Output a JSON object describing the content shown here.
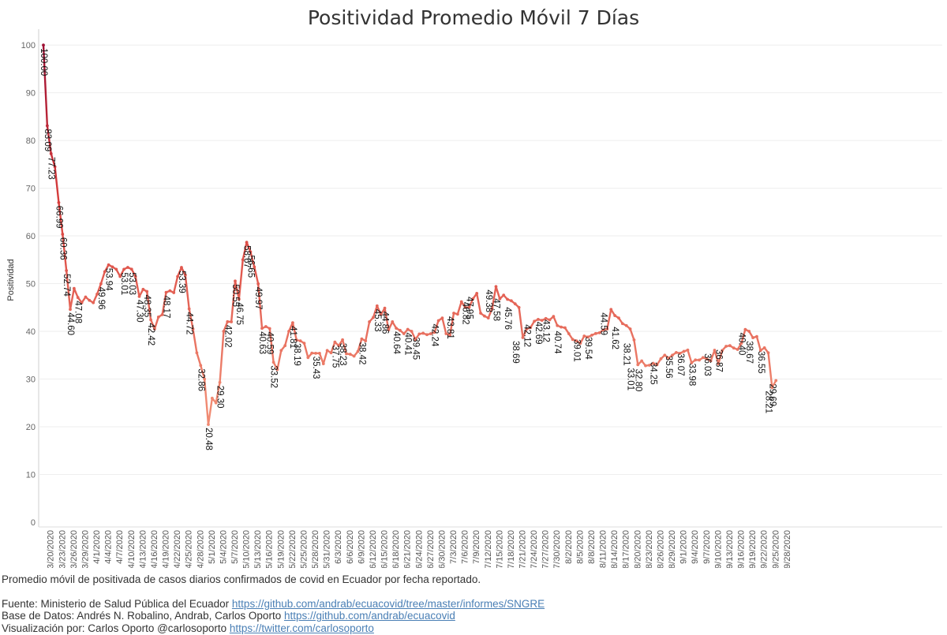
{
  "chart_data": {
    "type": "line",
    "title": "Positividad Promedio Móvil 7 Días",
    "ylabel": "Positividad",
    "xlabel": "",
    "ylim": [
      0,
      102
    ],
    "grid": true,
    "yticks": [
      0,
      10,
      20,
      30,
      40,
      50,
      60,
      70,
      80,
      90,
      100
    ],
    "xticks": [
      "3/20/2020",
      "3/23/2020",
      "3/26/2020",
      "3/29/2020",
      "4/1/2020",
      "4/4/2020",
      "4/7/2020",
      "4/10/2020",
      "4/13/2020",
      "4/16/2020",
      "4/19/2020",
      "4/22/2020",
      "4/25/2020",
      "4/28/2020",
      "5/1/2020",
      "5/4/2020",
      "5/7/2020",
      "5/10/2020",
      "5/13/2020",
      "5/16/2020",
      "5/19/2020",
      "5/22/2020",
      "5/25/2020",
      "5/28/2020",
      "5/31/2020",
      "6/3/2020",
      "6/6/2020",
      "6/9/2020",
      "6/12/2020",
      "6/15/2020",
      "6/18/2020",
      "6/21/2020",
      "6/24/2020",
      "6/27/2020",
      "6/30/2020",
      "7/3/2020",
      "7/6/2020",
      "7/9/2020",
      "7/12/2020",
      "7/15/2020",
      "7/18/2020",
      "7/21/2020",
      "7/24/2020",
      "7/27/2020",
      "7/30/2020",
      "8/2/2020",
      "8/5/2020",
      "8/8/2020",
      "8/11/2020",
      "8/14/2020",
      "8/17/2020",
      "8/20/2020",
      "8/23/2020",
      "8/26/2020",
      "8/29/2020",
      "9/1/2020",
      "9/4/2020",
      "9/7/2020",
      "9/10/2020",
      "9/13/2020",
      "9/16/2020",
      "9/19/2020",
      "9/22/2020",
      "9/25/2020",
      "9/28/2020"
    ],
    "start_date": "3/18/2020",
    "values": [
      100.0,
      83.09,
      77.23,
      74.5,
      66.99,
      60.36,
      52.74,
      44.6,
      49.0,
      47.08,
      46.0,
      47.2,
      46.5,
      46.0,
      47.8,
      49.96,
      52.5,
      53.94,
      53.5,
      53.0,
      51.5,
      53.01,
      53.4,
      53.03,
      51.5,
      47.3,
      48.8,
      48.35,
      42.42,
      40.5,
      43.0,
      43.5,
      48.17,
      48.5,
      48.1,
      51.5,
      53.39,
      51.8,
      44.72,
      40.5,
      35.5,
      32.86,
      30.0,
      20.48,
      26.0,
      25.0,
      29.3,
      40.0,
      42.02,
      42.0,
      50.55,
      46.75,
      55.0,
      58.67,
      56.65,
      53.5,
      49.97,
      40.63,
      41.0,
      40.59,
      33.52,
      32.0,
      36.0,
      37.0,
      40.0,
      41.81,
      38.19,
      38.0,
      37.5,
      34.5,
      35.43,
      35.4,
      35.4,
      33.2,
      36.0,
      35.5,
      37.75,
      37.0,
      38.23,
      35.3,
      35.2,
      34.8,
      35.8,
      38.42,
      38.0,
      42.0,
      42.9,
      45.33,
      43.5,
      44.86,
      40.3,
      42.0,
      40.64,
      40.2,
      39.5,
      40.41,
      40.0,
      38.3,
      39.45,
      39.6,
      39.3,
      39.5,
      39.8,
      42.24,
      42.8,
      39.5,
      39.2,
      43.81,
      43.6,
      46.2,
      45.0,
      45.0,
      46.82,
      47.95,
      43.8,
      43.2,
      42.8,
      44.8,
      49.38,
      46.8,
      47.58,
      46.7,
      46.4,
      45.76,
      45.0,
      38.69,
      40.5,
      40.8,
      42.12,
      42.5,
      42.3,
      42.69,
      42.4,
      43.12,
      41.2,
      40.9,
      40.74,
      39.5,
      38.3,
      38.0,
      37.5,
      39.01,
      38.8,
      39.2,
      39.54,
      39.7,
      40.3,
      40.5,
      44.59,
      43.3,
      42.8,
      41.62,
      41.2,
      40.5,
      38.21,
      33.01,
      33.8,
      32.8,
      32.9,
      33.3,
      33.0,
      34.25,
      35.0,
      34.4,
      35.0,
      35.56,
      35.4,
      35.8,
      36.07,
      33.4,
      34.0,
      33.98,
      34.5,
      34.2,
      33.8,
      36.03,
      33.2,
      36.0,
      36.87,
      37.0,
      36.5,
      36.2,
      37.5,
      40.4,
      40.0,
      38.67,
      38.9,
      36.0,
      36.55,
      35.5,
      28.21,
      29.69
    ],
    "labeled_points": [
      {
        "date": "3/18/2020",
        "value": 100.0,
        "label": "100.00"
      },
      {
        "date": "3/19/2020",
        "value": 83.09,
        "label": "83.09"
      },
      {
        "date": "3/20/2020",
        "value": 77.23,
        "label": "77.23"
      },
      {
        "date": "3/22/2020",
        "value": 66.99,
        "label": "66.99"
      },
      {
        "date": "3/23/2020",
        "value": 60.36,
        "label": "60.36"
      },
      {
        "date": "3/24/2020",
        "value": 52.74,
        "label": "52.74"
      },
      {
        "date": "3/25/2020",
        "value": 44.6,
        "label": "44.60"
      },
      {
        "date": "3/27/2020",
        "value": 47.08,
        "label": "47.08"
      },
      {
        "date": "4/2/2020",
        "value": 49.96,
        "label": "49.96"
      },
      {
        "date": "4/4/2020",
        "value": 53.94,
        "label": "53.94"
      },
      {
        "date": "4/8/2020",
        "value": 53.01,
        "label": "53.01"
      },
      {
        "date": "4/10/2020",
        "value": 53.03,
        "label": "53.03"
      },
      {
        "date": "4/12/2020",
        "value": 47.3,
        "label": "47.30"
      },
      {
        "date": "4/14/2020",
        "value": 48.35,
        "label": "48.35"
      },
      {
        "date": "4/15/2020",
        "value": 42.42,
        "label": "42.42"
      },
      {
        "date": "4/19/2020",
        "value": 48.17,
        "label": "48.17"
      },
      {
        "date": "4/23/2020",
        "value": 53.39,
        "label": "53.39"
      },
      {
        "date": "4/25/2020",
        "value": 44.72,
        "label": "44.72"
      },
      {
        "date": "4/28/2020",
        "value": 32.86,
        "label": "32.86"
      },
      {
        "date": "4/30/2020",
        "value": 20.48,
        "label": "20.48"
      },
      {
        "date": "5/3/2020",
        "value": 29.3,
        "label": "29.30"
      },
      {
        "date": "5/5/2020",
        "value": 42.02,
        "label": "42.02"
      },
      {
        "date": "5/7/2020",
        "value": 50.55,
        "label": "50.55"
      },
      {
        "date": "5/8/2020",
        "value": 46.75,
        "label": "46.75"
      },
      {
        "date": "5/10/2020",
        "value": 58.67,
        "label": "58.67"
      },
      {
        "date": "5/11/2020",
        "value": 56.65,
        "label": "56.65"
      },
      {
        "date": "5/13/2020",
        "value": 49.97,
        "label": "49.97"
      },
      {
        "date": "5/14/2020",
        "value": 40.63,
        "label": "40.63"
      },
      {
        "date": "5/16/2020",
        "value": 40.59,
        "label": "40.59"
      },
      {
        "date": "5/17/2020",
        "value": 33.52,
        "label": "33.52"
      },
      {
        "date": "5/22/2020",
        "value": 41.81,
        "label": "41.81"
      },
      {
        "date": "5/23/2020",
        "value": 38.19,
        "label": "38.19"
      },
      {
        "date": "5/28/2020",
        "value": 35.43,
        "label": "35.43"
      },
      {
        "date": "6/2/2020",
        "value": 37.75,
        "label": "37.75"
      },
      {
        "date": "6/4/2020",
        "value": 38.23,
        "label": "38.23"
      },
      {
        "date": "6/9/2020",
        "value": 38.42,
        "label": "38.42"
      },
      {
        "date": "6/13/2020",
        "value": 45.33,
        "label": "45.33"
      },
      {
        "date": "6/15/2020",
        "value": 44.86,
        "label": "44.86"
      },
      {
        "date": "6/18/2020",
        "value": 40.64,
        "label": "40.64"
      },
      {
        "date": "6/21/2020",
        "value": 40.41,
        "label": "40.41"
      },
      {
        "date": "6/23/2020",
        "value": 39.45,
        "label": "39.45"
      },
      {
        "date": "6/28/2020",
        "value": 42.24,
        "label": "42.24"
      },
      {
        "date": "7/2/2020",
        "value": 43.81,
        "label": "43.81"
      },
      {
        "date": "7/6/2020",
        "value": 46.82,
        "label": "46.82"
      },
      {
        "date": "7/7/2020",
        "value": 47.95,
        "label": "47.95"
      },
      {
        "date": "7/12/2020",
        "value": 49.38,
        "label": "49.38"
      },
      {
        "date": "7/14/2020",
        "value": 47.58,
        "label": "47.58"
      },
      {
        "date": "7/17/2020",
        "value": 45.76,
        "label": "45.76"
      },
      {
        "date": "7/19/2020",
        "value": 38.69,
        "label": "38.69"
      },
      {
        "date": "7/22/2020",
        "value": 42.12,
        "label": "42.12"
      },
      {
        "date": "7/25/2020",
        "value": 42.69,
        "label": "42.69"
      },
      {
        "date": "7/27/2020",
        "value": 43.12,
        "label": "43.12"
      },
      {
        "date": "7/30/2020",
        "value": 40.74,
        "label": "40.74"
      },
      {
        "date": "8/4/2020",
        "value": 39.01,
        "label": "39.01"
      },
      {
        "date": "8/7/2020",
        "value": 39.54,
        "label": "39.54"
      },
      {
        "date": "8/11/2020",
        "value": 44.59,
        "label": "44.59"
      },
      {
        "date": "8/14/2020",
        "value": 41.62,
        "label": "41.62"
      },
      {
        "date": "8/17/2020",
        "value": 38.21,
        "label": "38.21"
      },
      {
        "date": "8/18/2020",
        "value": 33.01,
        "label": "33.01"
      },
      {
        "date": "8/20/2020",
        "value": 32.8,
        "label": "32.80"
      },
      {
        "date": "8/24/2020",
        "value": 34.25,
        "label": "34.25"
      },
      {
        "date": "8/28/2020",
        "value": 35.56,
        "label": "35.56"
      },
      {
        "date": "8/31/2020",
        "value": 36.07,
        "label": "36.07"
      },
      {
        "date": "9/3/2020",
        "value": 33.98,
        "label": "33.98"
      },
      {
        "date": "9/7/2020",
        "value": 36.03,
        "label": "36.03"
      },
      {
        "date": "9/10/2020",
        "value": 36.87,
        "label": "36.87"
      },
      {
        "date": "9/16/2020",
        "value": 40.4,
        "label": "40.40"
      },
      {
        "date": "9/18/2020",
        "value": 38.67,
        "label": "38.67"
      },
      {
        "date": "9/21/2020",
        "value": 36.55,
        "label": "36.55"
      },
      {
        "date": "9/23/2020",
        "value": 28.21,
        "label": "28.21"
      },
      {
        "date": "9/24/2020",
        "value": 29.69,
        "label": "29.69"
      }
    ],
    "color_scale": {
      "high": "#9e0f33",
      "mid": "#d9403d",
      "low": "#f08a72"
    }
  },
  "footer": {
    "description": "Promedio móvil de positivada de casos diarios confirmados de covid en Ecuador por fecha reportado.",
    "source_prefix": "Fuente: Ministerio de Salud Pública del Ecuador ",
    "source_link": "https://github.com/andrab/ecuacovid/tree/master/informes/SNGRE",
    "db_prefix": "Base de Datos: Andrés N. Robalino, Andrab, Carlos Oporto ",
    "db_link": "https://github.com/andrab/ecuacovid",
    "viz_prefix": "Visualización por: Carlos Oporto @carlosoporto ",
    "viz_link": "https://twitter.com/carlosoporto"
  }
}
